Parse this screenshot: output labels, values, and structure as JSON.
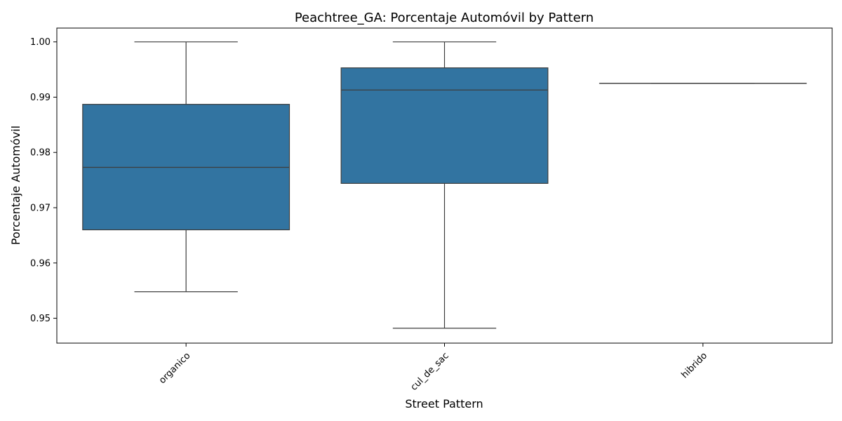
{
  "chart_data": {
    "type": "box",
    "title": "Peachtree_GA: Porcentaje Automóvil by Pattern",
    "xlabel": "Street Pattern",
    "ylabel": "Porcentaje Automóvil",
    "ylim": [
      0.9455,
      1.0025
    ],
    "yticks": [
      "0.95",
      "0.96",
      "0.97",
      "0.98",
      "0.99",
      "1.00"
    ],
    "ytick_values": [
      0.95,
      0.96,
      0.97,
      0.98,
      0.99,
      1.0
    ],
    "categories": [
      "organico",
      "cul_de_sac",
      "hibrido"
    ],
    "boxes": [
      {
        "category": "organico",
        "whisker_low": 0.9548,
        "q1": 0.966,
        "median": 0.9773,
        "q3": 0.9887,
        "whisker_high": 1.0
      },
      {
        "category": "cul_de_sac",
        "whisker_low": 0.9482,
        "q1": 0.9744,
        "median": 0.9913,
        "q3": 0.9953,
        "whisker_high": 1.0
      },
      {
        "category": "hibrido",
        "whisker_low": 0.9925,
        "q1": 0.9925,
        "median": 0.9925,
        "q3": 0.9925,
        "whisker_high": 0.9925
      }
    ],
    "box_color": "#3274a1",
    "line_color": "#3d3d3d",
    "grid": false,
    "legend": "none"
  }
}
